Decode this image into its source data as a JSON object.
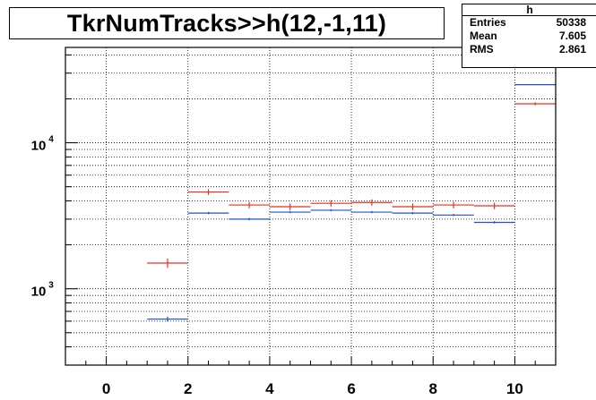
{
  "title": "TkrNumTracks>>h(12,-1,11)",
  "stats": {
    "name": "h",
    "rows": [
      {
        "key": "Entries",
        "value": "50338"
      },
      {
        "key": "Mean",
        "value": "7.605"
      },
      {
        "key": "RMS",
        "value": "2.861"
      }
    ]
  },
  "chart_data": {
    "type": "histogram",
    "title": "TkrNumTracks>>h(12,-1,11)",
    "xlabel": "",
    "ylabel": "",
    "xlim": [
      -1,
      11
    ],
    "ylim": [
      300,
      45000
    ],
    "y_scale": "log",
    "grid": true,
    "x_ticks": [
      0,
      2,
      4,
      6,
      8,
      10
    ],
    "y_ticks": [
      {
        "value": 1000,
        "label": "10",
        "exponent": "3"
      },
      {
        "value": 10000,
        "label": "10",
        "exponent": "4"
      }
    ],
    "bin_edges": [
      1,
      2,
      3,
      4,
      5,
      6,
      7,
      8,
      9,
      10,
      11
    ],
    "series": [
      {
        "color": "#e8321e",
        "values": [
          1500,
          4600,
          3750,
          3650,
          3850,
          3900,
          3650,
          3750,
          3700,
          18500
        ],
        "errors": [
          110,
          210,
          190,
          190,
          195,
          195,
          190,
          190,
          190,
          450
        ]
      },
      {
        "color": "#2050d0",
        "values": [
          620,
          3300,
          3000,
          3350,
          3450,
          3350,
          3300,
          3200,
          2850,
          25000
        ],
        "errors": [
          25,
          57,
          55,
          58,
          59,
          58,
          57,
          57,
          53,
          160
        ]
      }
    ]
  }
}
